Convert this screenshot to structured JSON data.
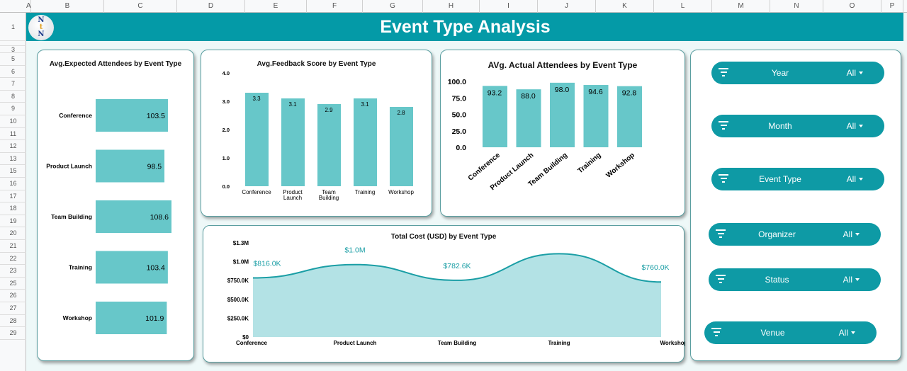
{
  "sheet": {
    "columns": [
      "A",
      "B",
      "C",
      "D",
      "E",
      "F",
      "G",
      "H",
      "I",
      "J",
      "K",
      "L",
      "M",
      "N",
      "O",
      "P"
    ],
    "rows": [
      "1",
      "2",
      "3",
      "5",
      "6",
      "7",
      "8",
      "9",
      "10",
      "11",
      "12",
      "13",
      "15",
      "16",
      "17",
      "18",
      "19",
      "20",
      "21",
      "22",
      "23",
      "25",
      "26",
      "27",
      "28",
      "29"
    ]
  },
  "header": {
    "title": "Event Type Analysis",
    "logo_text": "NtN"
  },
  "filters": [
    {
      "label": "Year",
      "value": "All"
    },
    {
      "label": "Month",
      "value": "All"
    },
    {
      "label": "Event Type",
      "value": "All"
    },
    {
      "label": "Organizer",
      "value": "All"
    },
    {
      "label": "Status",
      "value": "All"
    },
    {
      "label": "Venue",
      "value": "All"
    }
  ],
  "colors": {
    "teal": "#049aa7",
    "bar": "#67c7c9",
    "area": "#b3e2e5",
    "line": "#1a9ea5"
  },
  "chart_data": [
    {
      "type": "bar",
      "orientation": "horizontal",
      "title": "Avg.Expected Attendees by Event Type",
      "categories": [
        "Conference",
        "Product Launch",
        "Team Building",
        "Training",
        "Workshop"
      ],
      "values": [
        103.5,
        98.5,
        108.6,
        103.4,
        101.9
      ],
      "labels": [
        "103.5",
        "98.5",
        "108.6",
        "103.4",
        "101.9"
      ]
    },
    {
      "type": "bar",
      "title": "Avg.Feedback Score by Event Type",
      "categories": [
        "Conference",
        "Product Launch",
        "Team Building",
        "Training",
        "Workshop"
      ],
      "values": [
        3.3,
        3.1,
        2.9,
        3.1,
        2.8
      ],
      "labels": [
        "3.3",
        "3.1",
        "2.9",
        "3.1",
        "2.8"
      ],
      "yticks": [
        "0.0",
        "1.0",
        "2.0",
        "3.0",
        "4.0"
      ],
      "ylim": [
        0,
        4
      ]
    },
    {
      "type": "bar",
      "title": "AVg. Actual Attendees by Event Type",
      "categories": [
        "Conference",
        "Product Launch",
        "Team Building",
        "Training",
        "Workshop"
      ],
      "values": [
        93.2,
        88.0,
        98.0,
        94.6,
        92.8
      ],
      "labels": [
        "93.2",
        "88.0",
        "98.0",
        "94.6",
        "92.8"
      ],
      "yticks": [
        "0.0",
        "25.0",
        "50.0",
        "75.0",
        "100.0"
      ],
      "ylim": [
        0,
        100
      ]
    },
    {
      "type": "area",
      "title": "Total Cost (USD) by Event Type",
      "categories": [
        "Conference",
        "Product Launch",
        "Team Building",
        "Training",
        "Workshop"
      ],
      "values": [
        816000,
        1000000,
        782600,
        1150000,
        760000
      ],
      "labels": [
        "$816.0K",
        "$1.0M",
        "$782.6K",
        "",
        "$760.0K"
      ],
      "yticks": [
        "$0",
        "$250.0K",
        "$500.0K",
        "$750.0K",
        "$1.0M",
        "$1.3M"
      ],
      "ylim": [
        0,
        1300000
      ]
    }
  ]
}
